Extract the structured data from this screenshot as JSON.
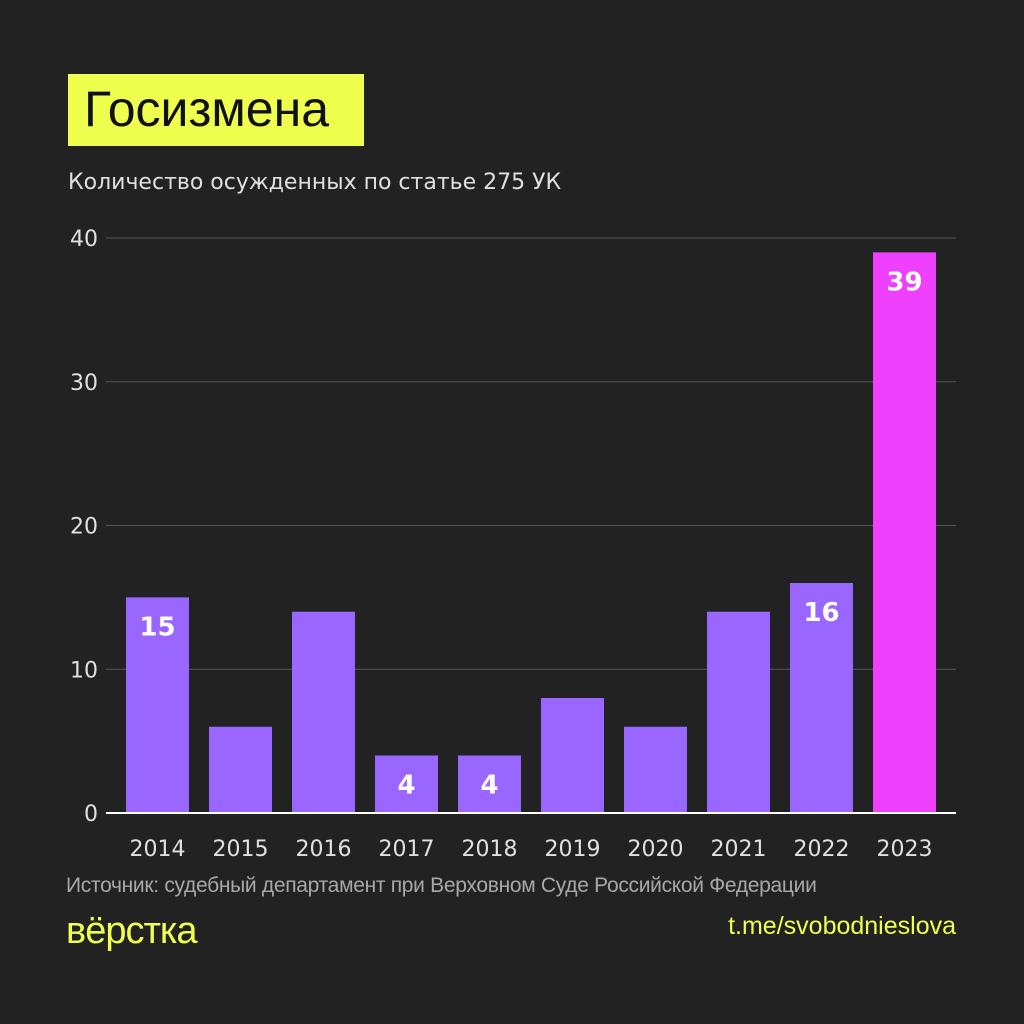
{
  "header": {
    "title": "Госизмена",
    "subtitle": "Количество осужденных по статье 275 УК"
  },
  "chart_data": {
    "type": "bar",
    "title": "Госизмена",
    "subtitle": "Количество осужденных по статье 275 УК",
    "categories": [
      "2014",
      "2015",
      "2016",
      "2017",
      "2018",
      "2019",
      "2020",
      "2021",
      "2022",
      "2023"
    ],
    "values": [
      15,
      6,
      14,
      4,
      4,
      8,
      6,
      14,
      16,
      39
    ],
    "data_labels": [
      "15",
      "",
      "",
      "4",
      "4",
      "",
      "",
      "",
      "16",
      "39"
    ],
    "ylim": [
      0,
      40
    ],
    "yticks": [
      "0",
      "10",
      "20",
      "30",
      "40"
    ],
    "grid": true,
    "xlabel": "",
    "ylabel": "",
    "colors": {
      "default": "#9966ff",
      "highlight": "#f040ff",
      "highlight_category": "2023"
    }
  },
  "footer": {
    "source": "Источник: судебный департамент при Верховном Суде Российской Федерации",
    "logo": "вёрстка",
    "link": "t.me/svobodnieslova"
  },
  "colors": {
    "background": "#222222",
    "accent": "#eeff4e"
  }
}
